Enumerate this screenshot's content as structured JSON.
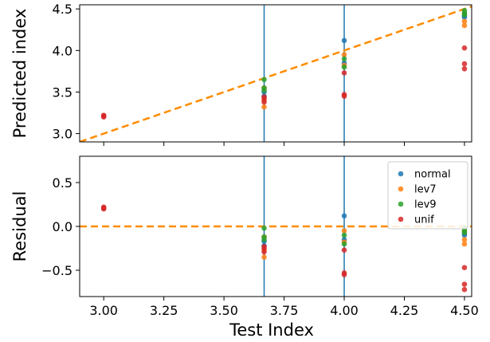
{
  "chart_data": [
    {
      "type": "scatter",
      "panel": "top",
      "title": "",
      "xlabel": "",
      "ylabel": "Predicted index",
      "xlim": [
        2.9,
        4.53
      ],
      "ylim": [
        2.9,
        4.55
      ],
      "yticks": [
        3.0,
        3.5,
        4.0,
        4.5
      ],
      "ytick_labels": [
        "3.0",
        "3.5",
        "4.0",
        "4.5"
      ],
      "grid": false,
      "vlines": [
        3.667,
        4.0
      ],
      "reference_line": {
        "points": [
          [
            2.9,
            2.9
          ],
          [
            4.53,
            4.53
          ]
        ],
        "style": "dashed",
        "color": "#ff8c00"
      },
      "series": [
        {
          "name": "normal",
          "color": "#1f77b4",
          "points": [
            [
              3.667,
              3.45
            ],
            [
              3.667,
              3.5
            ],
            [
              4.0,
              4.12
            ],
            [
              4.0,
              3.85
            ],
            [
              4.5,
              4.4
            ],
            [
              4.5,
              4.42
            ]
          ]
        },
        {
          "name": "lev7",
          "color": "#ff7f0e",
          "points": [
            [
              3.667,
              3.32
            ],
            [
              3.667,
              3.4
            ],
            [
              3.667,
              3.55
            ],
            [
              4.0,
              3.95
            ],
            [
              4.0,
              3.82
            ],
            [
              4.5,
              4.3
            ],
            [
              4.5,
              4.35
            ],
            [
              4.5,
              4.45
            ]
          ]
        },
        {
          "name": "lev9",
          "color": "#2ca02c",
          "points": [
            [
              3.667,
              3.65
            ],
            [
              3.667,
              3.55
            ],
            [
              3.667,
              3.52
            ],
            [
              4.0,
              3.9
            ],
            [
              4.0,
              3.8
            ],
            [
              4.5,
              4.43
            ],
            [
              4.5,
              4.45
            ],
            [
              4.5,
              4.48
            ]
          ]
        },
        {
          "name": "unif",
          "color": "#d62728",
          "points": [
            [
              3.0,
              3.21
            ],
            [
              3.0,
              3.22
            ],
            [
              3.0,
              3.2
            ],
            [
              3.667,
              3.42
            ],
            [
              3.667,
              3.44
            ],
            [
              3.667,
              3.38
            ],
            [
              4.0,
              3.73
            ],
            [
              4.0,
              3.45
            ],
            [
              4.0,
              3.47
            ],
            [
              4.5,
              3.84
            ],
            [
              4.5,
              3.78
            ],
            [
              4.5,
              4.03
            ]
          ]
        }
      ]
    },
    {
      "type": "scatter",
      "panel": "bottom",
      "title": "",
      "xlabel": "Test Index",
      "ylabel": "Residual",
      "xlim": [
        2.9,
        4.53
      ],
      "ylim": [
        -0.8,
        0.8
      ],
      "xticks": [
        3.0,
        3.25,
        3.5,
        3.75,
        4.0,
        4.25,
        4.5
      ],
      "xtick_labels": [
        "3.00",
        "3.25",
        "3.50",
        "3.75",
        "4.00",
        "4.25",
        "4.50"
      ],
      "yticks": [
        -0.5,
        0.0,
        0.5
      ],
      "ytick_labels": [
        "−0.5",
        "0.0",
        "0.5"
      ],
      "grid": false,
      "vlines": [
        3.667,
        4.0
      ],
      "reference_line": {
        "points": [
          [
            2.9,
            0.0
          ],
          [
            4.53,
            0.0
          ]
        ],
        "style": "dashed",
        "color": "#ff8c00"
      },
      "legend": {
        "placement": "top-right",
        "entries": [
          "normal",
          "lev7",
          "lev9",
          "unif"
        ]
      },
      "series": [
        {
          "name": "normal",
          "color": "#1f77b4",
          "points": [
            [
              3.667,
              -0.22
            ],
            [
              3.667,
              -0.17
            ],
            [
              4.0,
              0.12
            ],
            [
              4.0,
              -0.15
            ],
            [
              4.5,
              -0.1
            ],
            [
              4.5,
              -0.08
            ]
          ]
        },
        {
          "name": "lev7",
          "color": "#ff7f0e",
          "points": [
            [
              3.667,
              -0.35
            ],
            [
              3.667,
              -0.27
            ],
            [
              3.667,
              -0.12
            ],
            [
              4.0,
              -0.05
            ],
            [
              4.0,
              -0.18
            ],
            [
              4.5,
              -0.2
            ],
            [
              4.5,
              -0.15
            ],
            [
              4.5,
              -0.05
            ]
          ]
        },
        {
          "name": "lev9",
          "color": "#2ca02c",
          "points": [
            [
              3.667,
              -0.02
            ],
            [
              3.667,
              -0.12
            ],
            [
              3.667,
              -0.15
            ],
            [
              4.0,
              -0.1
            ],
            [
              4.0,
              -0.2
            ],
            [
              4.5,
              -0.07
            ],
            [
              4.5,
              -0.05
            ],
            [
              4.5,
              -0.02
            ]
          ]
        },
        {
          "name": "unif",
          "color": "#d62728",
          "points": [
            [
              3.0,
              0.21
            ],
            [
              3.0,
              0.22
            ],
            [
              3.0,
              0.2
            ],
            [
              3.667,
              -0.25
            ],
            [
              3.667,
              -0.23
            ],
            [
              3.667,
              -0.29
            ],
            [
              4.0,
              -0.27
            ],
            [
              4.0,
              -0.55
            ],
            [
              4.0,
              -0.53
            ],
            [
              4.5,
              -0.66
            ],
            [
              4.5,
              -0.72
            ],
            [
              4.5,
              -0.47
            ]
          ]
        }
      ]
    }
  ]
}
